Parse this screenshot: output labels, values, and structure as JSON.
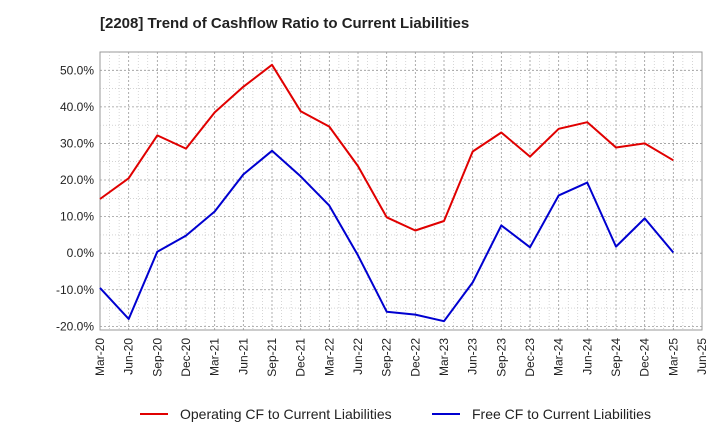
{
  "chart_data": {
    "type": "line",
    "title": "[2208]  Trend of Cashflow Ratio to Current Liabilities",
    "xlabel": "",
    "ylabel": "",
    "x_tick_labels": [
      "Mar-20",
      "Jun-20",
      "Sep-20",
      "Dec-20",
      "Mar-21",
      "Jun-21",
      "Sep-21",
      "Dec-21",
      "Mar-22",
      "Jun-22",
      "Sep-22",
      "Dec-22",
      "Mar-23",
      "Jun-23",
      "Sep-23",
      "Dec-23",
      "Mar-24",
      "Jun-24",
      "Sep-24",
      "Dec-24",
      "Mar-25",
      "Jun-25"
    ],
    "y_tick_labels": [
      "-20.0%",
      "-10.0%",
      "0.0%",
      "10.0%",
      "20.0%",
      "30.0%",
      "40.0%",
      "50.0%"
    ],
    "ylim": [
      -21,
      55
    ],
    "grid": true,
    "legend_position": "bottom",
    "categories": [
      "Mar-20",
      "Jun-20",
      "Sep-20",
      "Dec-20",
      "Mar-21",
      "Jun-21",
      "Sep-21",
      "Dec-21",
      "Mar-22",
      "Jun-22",
      "Sep-22",
      "Dec-22",
      "Mar-23",
      "Jun-23",
      "Sep-23",
      "Dec-23",
      "Mar-24",
      "Jun-24",
      "Sep-24",
      "Dec-24",
      "Mar-25"
    ],
    "series": [
      {
        "name": "Operating CF to Current Liabilities",
        "color": "#e00000",
        "values": [
          14.8,
          20.5,
          32.2,
          28.6,
          38.5,
          45.5,
          51.5,
          38.8,
          34.6,
          23.8,
          9.8,
          6.2,
          8.8,
          27.8,
          33.0,
          26.4,
          34.0,
          35.8,
          28.9,
          30.0,
          25.4
        ]
      },
      {
        "name": "Free CF to Current Liabilities",
        "color": "#0000d0",
        "values": [
          -9.5,
          -18.0,
          0.4,
          4.8,
          11.4,
          21.5,
          28.0,
          21.0,
          13.0,
          -0.6,
          -16.0,
          -16.8,
          -18.6,
          -8.0,
          7.6,
          1.6,
          15.8,
          19.3,
          1.8,
          9.5,
          0.2
        ]
      }
    ]
  }
}
